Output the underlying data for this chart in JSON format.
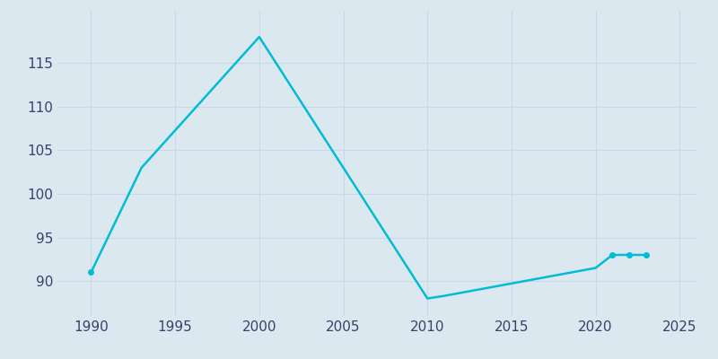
{
  "years": [
    1990,
    1993,
    2000,
    2010,
    2011,
    2020,
    2021,
    2022,
    2023
  ],
  "population": [
    91,
    103,
    118,
    88,
    88.3,
    91.5,
    93,
    93,
    93
  ],
  "line_color": "#00bcd4",
  "marker_years": [
    1990,
    2021,
    2022,
    2023
  ],
  "marker_values": [
    91,
    93,
    93,
    93
  ],
  "background_color": "#dce8f0",
  "plot_bg_color": "#dce8f0",
  "grid_color": "#c8d8e8",
  "xlim": [
    1988,
    2026
  ],
  "ylim": [
    86,
    121
  ],
  "yticks": [
    90,
    95,
    100,
    105,
    110,
    115
  ],
  "xticks": [
    1990,
    1995,
    2000,
    2005,
    2010,
    2015,
    2020,
    2025
  ],
  "tick_label_color": "#3a3f6b",
  "tick_fontsize": 11,
  "line_width": 1.8
}
